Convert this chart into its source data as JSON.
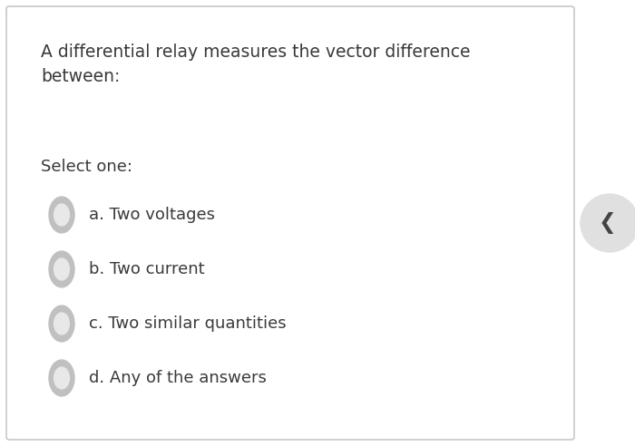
{
  "background_color": "#ffffff",
  "border_color": "#c8c8c8",
  "question_text_line1": "A differential relay measures the vector difference",
  "question_text_line2": "between:",
  "select_label": "Select one:",
  "options": [
    "a. Two voltages",
    "b. Two current",
    "c. Two similar quantities",
    "d. Any of the answers"
  ],
  "text_color": "#3a3a3a",
  "radio_outer_color": "#c0c0c0",
  "radio_inner_color": "#e8e8e8",
  "chevron_color": "#444444",
  "chevron_bg_color": "#e0e0e0",
  "font_size_question": 13.5,
  "font_size_select": 13,
  "font_size_options": 13
}
